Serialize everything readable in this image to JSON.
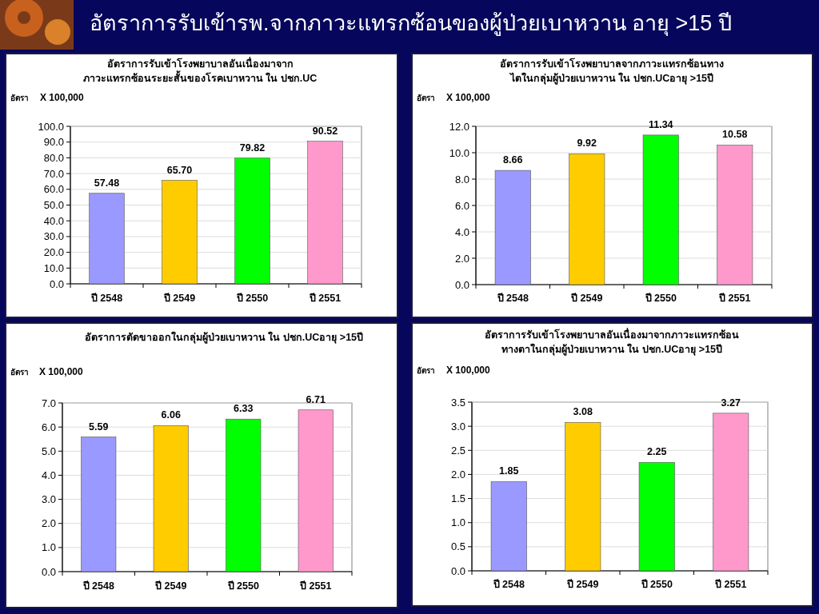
{
  "chart_data": [
    {
      "type": "other",
      "title": "อัตราการรับเข้ารพ.จากภาวะแทรกซ้อนของผู้ป่วยเบาหวาน อายุ >15 ปี"
    },
    {
      "type": "bar",
      "title": "อัตราการรับเข้าโรงพยาบาลอันเนื่องมาจาก\nภาวะแทรกซ้อนระยะสั้นของโรคเบาหวาน ใน ปชก.UC",
      "ylabel": "อัตรา",
      "annotations": [
        "X 100,000"
      ],
      "categories": [
        "ปี 2548",
        "ปี 2549",
        "ปี 2550",
        "ปี 2551"
      ],
      "values": [
        57.48,
        65.7,
        79.82,
        90.52
      ],
      "value_labels": [
        "57.48",
        "65.70",
        "79.82",
        "90.52"
      ],
      "colors": [
        "#9999ff",
        "#ffcc00",
        "#00ff00",
        "#ff99cc"
      ],
      "ylim": [
        0,
        100
      ],
      "yticks": [
        {
          "value": 0,
          "label": "0.0"
        },
        {
          "value": 10,
          "label": "10.0"
        },
        {
          "value": 20,
          "label": "20.0"
        },
        {
          "value": 30,
          "label": "30.0"
        },
        {
          "value": 40,
          "label": "40.0"
        },
        {
          "value": 50,
          "label": "50.0"
        },
        {
          "value": 60,
          "label": "60.0"
        },
        {
          "value": 70,
          "label": "70.0"
        },
        {
          "value": 80,
          "label": "80.0"
        },
        {
          "value": 90,
          "label": "90.0"
        },
        {
          "value": 100,
          "label": "100.0"
        }
      ],
      "grid": "y"
    },
    {
      "type": "bar",
      "title": "อัตราการรับเข้าโรงพยาบาลจากภาวะแทรกซ้อนทาง\nไตในกลุ่มผู้ป่วยเบาหวาน ใน ปชก.UCอายุ >15ปี",
      "ylabel": "อัตรา",
      "annotations": [
        "X 100,000"
      ],
      "categories": [
        "ปี 2548",
        "ปี 2549",
        "ปี 2550",
        "ปี 2551"
      ],
      "values": [
        8.66,
        9.92,
        11.34,
        10.58
      ],
      "value_labels": [
        "8.66",
        "9.92",
        "11.34",
        "10.58"
      ],
      "colors": [
        "#9999ff",
        "#ffcc00",
        "#00ff00",
        "#ff99cc"
      ],
      "ylim": [
        0,
        12
      ],
      "yticks": [
        {
          "value": 0,
          "label": "0.0"
        },
        {
          "value": 2,
          "label": "2.0"
        },
        {
          "value": 4,
          "label": "4.0"
        },
        {
          "value": 6,
          "label": "6.0"
        },
        {
          "value": 8,
          "label": "8.0"
        },
        {
          "value": 10,
          "label": "10.0"
        },
        {
          "value": 12,
          "label": "12.0"
        }
      ],
      "grid": "y"
    },
    {
      "type": "bar",
      "title": "อัตราการตัดขาออกในกลุ่มผู้ป่วยเบาหวาน ใน ปชก.UCอายุ >15ปี",
      "ylabel": "อัตรา",
      "annotations": [
        "X 100,000"
      ],
      "categories": [
        "ปี 2548",
        "ปี 2549",
        "ปี 2550",
        "ปี 2551"
      ],
      "values": [
        5.59,
        6.06,
        6.33,
        6.71
      ],
      "value_labels": [
        "5.59",
        "6.06",
        "6.33",
        "6.71"
      ],
      "colors": [
        "#9999ff",
        "#ffcc00",
        "#00ff00",
        "#ff99cc"
      ],
      "ylim": [
        0,
        7
      ],
      "yticks": [
        {
          "value": 0,
          "label": "0.0"
        },
        {
          "value": 1,
          "label": "1.0"
        },
        {
          "value": 2,
          "label": "2.0"
        },
        {
          "value": 3,
          "label": "3.0"
        },
        {
          "value": 4,
          "label": "4.0"
        },
        {
          "value": 5,
          "label": "5.0"
        },
        {
          "value": 6,
          "label": "6.0"
        },
        {
          "value": 7,
          "label": "7.0"
        }
      ],
      "grid": "y"
    },
    {
      "type": "bar",
      "title": "อัตราการรับเข้าโรงพยาบาลอันเนื่องมาจากภาวะแทรกซ้อน\nทางตาในกลุ่มผู้ป่วยเบาหวาน ใน ปชก.UCอายุ >15ปี",
      "ylabel": "อัตรา",
      "annotations": [
        "X 100,000"
      ],
      "categories": [
        "ปี 2548",
        "ปี 2549",
        "ปี 2550",
        "ปี 2551"
      ],
      "values": [
        1.85,
        3.08,
        2.25,
        3.27
      ],
      "value_labels": [
        "1.85",
        "3.08",
        "2.25",
        "3.27"
      ],
      "colors": [
        "#9999ff",
        "#ffcc00",
        "#00ff00",
        "#ff99cc"
      ],
      "ylim": [
        0,
        3.5
      ],
      "yticks": [
        {
          "value": 0,
          "label": "0.0"
        },
        {
          "value": 0.5,
          "label": "0.5"
        },
        {
          "value": 1,
          "label": "1.0"
        },
        {
          "value": 1.5,
          "label": "1.5"
        },
        {
          "value": 2,
          "label": "2.0"
        },
        {
          "value": 2.5,
          "label": "2.5"
        },
        {
          "value": 3,
          "label": "3.0"
        },
        {
          "value": 3.5,
          "label": "3.5"
        }
      ],
      "grid": "y"
    }
  ]
}
